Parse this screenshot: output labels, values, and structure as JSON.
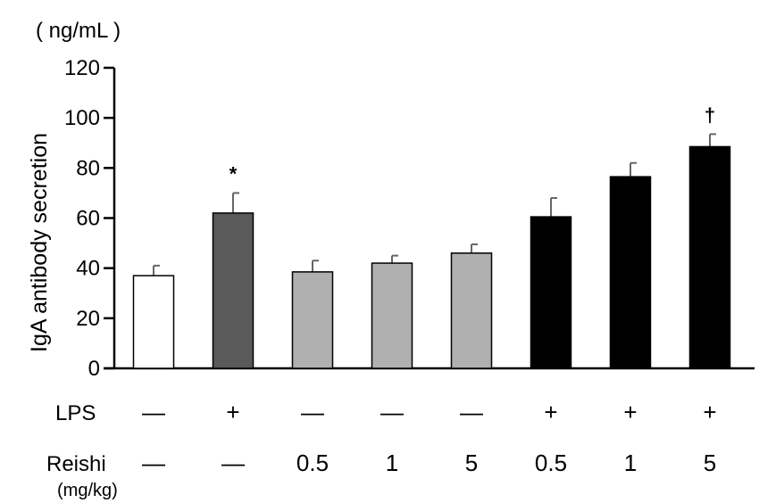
{
  "chart_data": {
    "type": "bar",
    "unit_label": "( ng/mL )",
    "ylabel": "IgA antibody secretion",
    "ylim": [
      0,
      120
    ],
    "yticks": [
      0,
      20,
      40,
      60,
      80,
      100,
      120
    ],
    "grid": false,
    "groups": [
      {
        "lps": "—",
        "reishi": "—",
        "value": 37,
        "error": 4,
        "color": "#ffffff",
        "sig": ""
      },
      {
        "lps": "+",
        "reishi": "—",
        "value": 62,
        "error": 8,
        "color": "#5a5a5a",
        "sig": "*"
      },
      {
        "lps": "—",
        "reishi": "0.5",
        "value": 38.5,
        "error": 4.5,
        "color": "#b0b0b0",
        "sig": ""
      },
      {
        "lps": "—",
        "reishi": "1",
        "value": 42,
        "error": 3,
        "color": "#b0b0b0",
        "sig": ""
      },
      {
        "lps": "—",
        "reishi": "5",
        "value": 46,
        "error": 3.5,
        "color": "#b0b0b0",
        "sig": ""
      },
      {
        "lps": "+",
        "reishi": "0.5",
        "value": 60.5,
        "error": 7.5,
        "color": "#000000",
        "sig": ""
      },
      {
        "lps": "+",
        "reishi": "1",
        "value": 76.5,
        "error": 5.5,
        "color": "#000000",
        "sig": ""
      },
      {
        "lps": "+",
        "reishi": "5",
        "value": 88.5,
        "error": 5,
        "color": "#000000",
        "sig": "†"
      }
    ]
  },
  "rows": {
    "lps_label": "LPS",
    "reishi_label": "Reishi",
    "reishi_unit": "(mg/kg)"
  }
}
